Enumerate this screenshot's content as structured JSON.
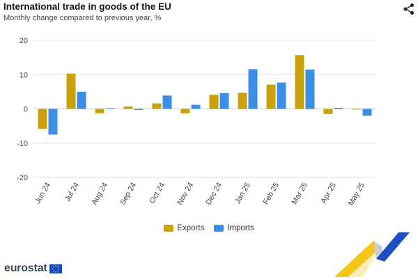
{
  "header": {
    "title": "International trade in goods of the EU",
    "subtitle": "Monthly change compared to previous year, %"
  },
  "share": {
    "icon": "share-icon"
  },
  "legend": {
    "items": [
      {
        "label": "Exports",
        "color": "#c9a20a"
      },
      {
        "label": "Imports",
        "color": "#3b8ee6"
      }
    ]
  },
  "logo": {
    "text": "eurostat",
    "icon": "eu-flag-icon"
  },
  "chart_data": {
    "type": "bar",
    "categories": [
      "Jun 24",
      "Jul 24",
      "Aug 24",
      "Sep 24",
      "Oct 24",
      "Nov 24",
      "Dec 24",
      "Jan 25",
      "Feb 25",
      "Mar 25",
      "Apr 25",
      "May 25"
    ],
    "series": [
      {
        "name": "Exports",
        "color": "#c9a20a",
        "values": [
          -5.8,
          10.3,
          -1.3,
          0.7,
          1.6,
          -1.3,
          4.1,
          4.7,
          7.1,
          15.7,
          -1.5,
          -0.2
        ]
      },
      {
        "name": "Imports",
        "color": "#3b8ee6",
        "values": [
          -7.5,
          5.0,
          0.2,
          -0.3,
          3.9,
          1.2,
          4.6,
          11.6,
          7.7,
          11.5,
          0.3,
          -2.0
        ]
      }
    ],
    "yticks": [
      "20",
      "10",
      "0",
      "-10",
      "-20"
    ],
    "ylim": [
      -20,
      20
    ],
    "grid": true,
    "legend_position": "bottom"
  }
}
